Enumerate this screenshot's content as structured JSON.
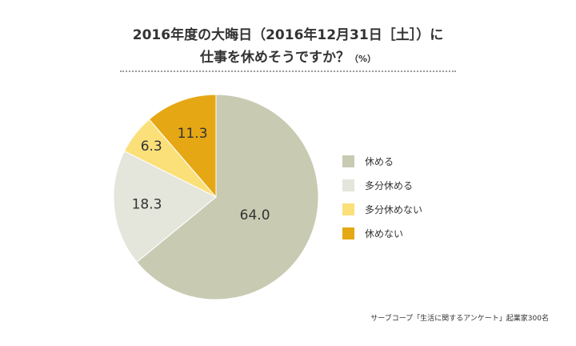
{
  "title": {
    "line1": "2016年度の大晦日（2016年12月31日［土］）に",
    "line2": "仕事を休めそうですか？",
    "unit": "（%）"
  },
  "source": "サーブコープ「生活に関するアンケート」起業家300名",
  "colors": {
    "休める": "#c8cab2",
    "多分休める": "#e4e5db",
    "多分休めない": "#fbe07a",
    "休めない": "#e6a714"
  },
  "chart_data": {
    "type": "pie",
    "title": "2016年度の大晦日（2016年12月31日［土］）に仕事を休めそうですか？",
    "unit": "%",
    "start": "12 o'clock",
    "direction": "clockwise",
    "categories": [
      "休める",
      "多分休める",
      "多分休めない",
      "休めない"
    ],
    "values": [
      64.0,
      18.3,
      6.3,
      11.3
    ],
    "value_labels": [
      "64.0",
      "18.3",
      "6.3",
      "11.3"
    ],
    "legend": {
      "position": "right",
      "entries": [
        "休める",
        "多分休める",
        "多分休めない",
        "休めない"
      ]
    }
  }
}
